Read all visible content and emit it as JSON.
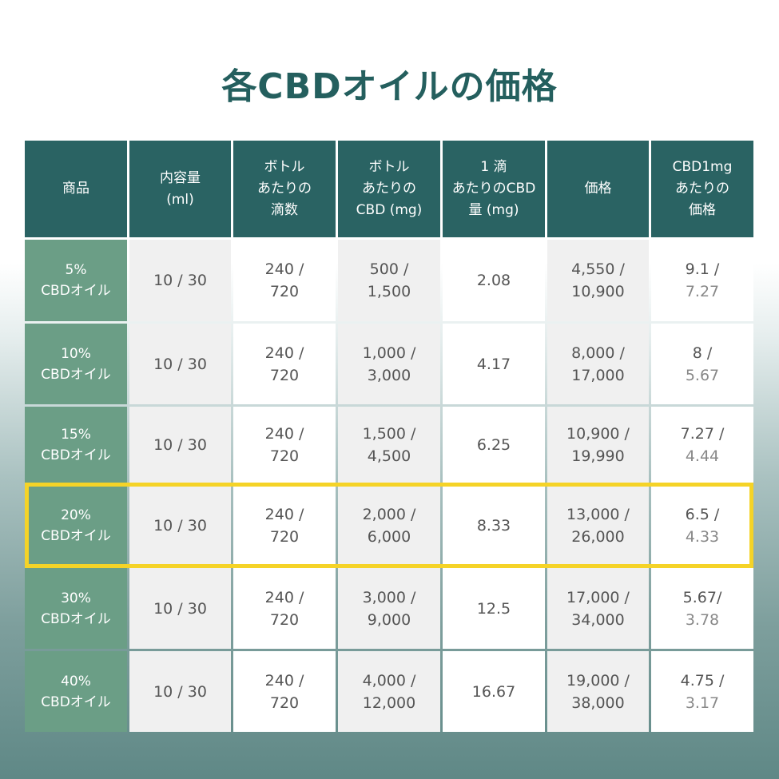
{
  "title": "各CBDオイルの価格",
  "headers": [
    [
      "商品"
    ],
    [
      "内容量",
      "(ml)"
    ],
    [
      "ボトル",
      "あたりの",
      "滴数"
    ],
    [
      "ボトル",
      "あたりの",
      "CBD (mg)"
    ],
    [
      "1 滴",
      "あたりのCBD",
      "量 (mg)"
    ],
    [
      "価格"
    ],
    [
      "CBD1mg",
      "あたりの",
      "価格"
    ]
  ],
  "rows": [
    {
      "product": [
        "5%",
        "CBDオイル"
      ],
      "cells": [
        [
          "10 / 30"
        ],
        [
          "240 /",
          "720"
        ],
        [
          "500 /",
          "1,500"
        ],
        [
          "2.08"
        ],
        [
          "4,550 /",
          "10,900"
        ],
        [
          "9.1 /",
          "7.27"
        ]
      ]
    },
    {
      "product": [
        "10%",
        "CBDオイル"
      ],
      "cells": [
        [
          "10 / 30"
        ],
        [
          "240 /",
          "720"
        ],
        [
          "1,000 /",
          "3,000"
        ],
        [
          "4.17"
        ],
        [
          "8,000 /",
          "17,000"
        ],
        [
          "8 /",
          "5.67"
        ]
      ]
    },
    {
      "product": [
        "15%",
        "CBDオイル"
      ],
      "cells": [
        [
          "10 / 30"
        ],
        [
          "240 /",
          "720"
        ],
        [
          "1,500 /",
          "4,500"
        ],
        [
          "6.25"
        ],
        [
          "10,900 /",
          "19,990"
        ],
        [
          "7.27 /",
          "4.44"
        ]
      ]
    },
    {
      "product": [
        "20%",
        "CBDオイル"
      ],
      "cells": [
        [
          "10 / 30"
        ],
        [
          "240 /",
          "720"
        ],
        [
          "2,000 /",
          "6,000"
        ],
        [
          "8.33"
        ],
        [
          "13,000 /",
          "26,000"
        ],
        [
          "6.5 /",
          "4.33"
        ]
      ],
      "highlighted": true
    },
    {
      "product": [
        "30%",
        "CBDオイル"
      ],
      "cells": [
        [
          "10 / 30"
        ],
        [
          "240 /",
          "720"
        ],
        [
          "3,000 /",
          "9,000"
        ],
        [
          "12.5"
        ],
        [
          "17,000 /",
          "34,000"
        ],
        [
          "5.67/",
          "3.78"
        ]
      ]
    },
    {
      "product": [
        "40%",
        "CBDオイル"
      ],
      "cells": [
        [
          "10 / 30"
        ],
        [
          "240 /",
          "720"
        ],
        [
          "4,000 /",
          "12,000"
        ],
        [
          "16.67"
        ],
        [
          "19,000 /",
          "38,000"
        ],
        [
          "4.75 /",
          "3.17"
        ]
      ]
    }
  ],
  "colors": {
    "header": "#2a6363",
    "row_header": "#6b9e86",
    "highlight": "#f5d327",
    "title": "#245f5e"
  }
}
